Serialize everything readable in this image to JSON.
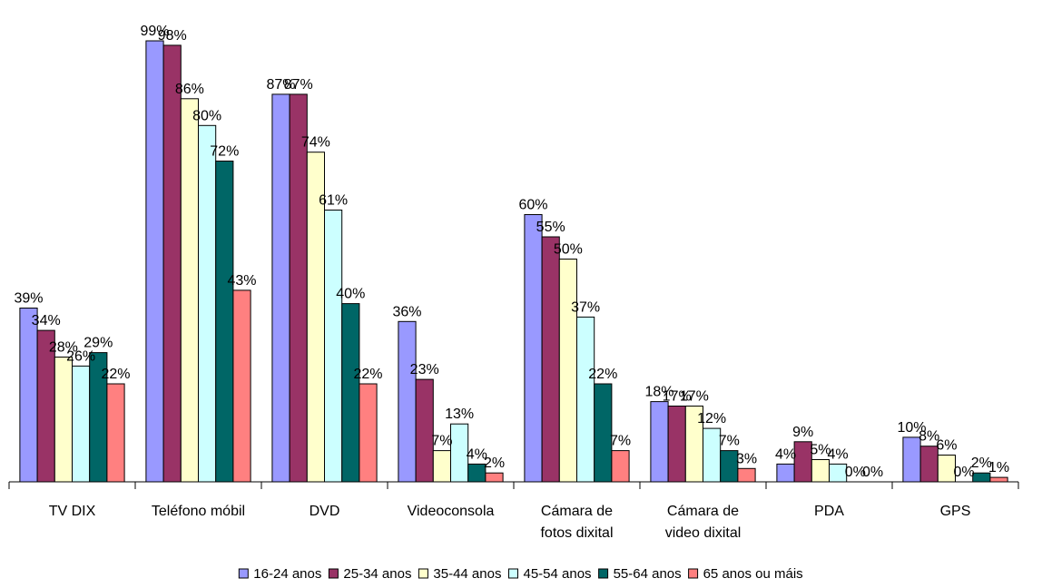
{
  "chart_data": {
    "type": "bar",
    "title": "",
    "xlabel": "",
    "ylabel": "",
    "ylim": [
      0,
      100
    ],
    "grid": false,
    "legend_position": "bottom",
    "categories": [
      [
        "TV DIX"
      ],
      [
        "Teléfono móbil"
      ],
      [
        "DVD"
      ],
      [
        "Videoconsola"
      ],
      [
        "Cámara de",
        "fotos dixital"
      ],
      [
        "Cámara de",
        "video dixital"
      ],
      [
        "PDA"
      ],
      [
        "GPS"
      ]
    ],
    "series": [
      {
        "name": "16-24 anos",
        "color": "#9999FF",
        "values": [
          39,
          99,
          87,
          36,
          60,
          18,
          4,
          10
        ],
        "labels": [
          "39%",
          "99%",
          "87%",
          "36%",
          "60%",
          "18%",
          "4%",
          "10%"
        ]
      },
      {
        "name": "25-34 anos",
        "color": "#993366",
        "values": [
          34,
          98,
          87,
          23,
          55,
          17,
          9,
          8
        ],
        "labels": [
          "34%",
          "98%",
          "87%",
          "23%",
          "55%",
          "17%",
          "9%",
          "8%"
        ]
      },
      {
        "name": "35-44 anos",
        "color": "#FFFFCC",
        "values": [
          28,
          86,
          74,
          7,
          50,
          17,
          5,
          6
        ],
        "labels": [
          "28%",
          "86%",
          "74%",
          "7%",
          "50%",
          "17%",
          "5%",
          "6%"
        ]
      },
      {
        "name": "45-54 anos",
        "color": "#CCFFFF",
        "values": [
          26,
          80,
          61,
          13,
          37,
          12,
          4,
          0
        ],
        "labels": [
          "26%",
          "80%",
          "61%",
          "13%",
          "37%",
          "12%",
          "4%",
          "0%"
        ]
      },
      {
        "name": "55-64 anos",
        "color": "#006666",
        "values": [
          29,
          72,
          40,
          4,
          22,
          7,
          0,
          2
        ],
        "labels": [
          "29%",
          "72%",
          "40%",
          "4%",
          "22%",
          "7%",
          "0%",
          "2%"
        ]
      },
      {
        "name": "65 anos ou máis",
        "color": "#FF8080",
        "values": [
          22,
          43,
          22,
          2,
          7,
          3,
          0,
          1
        ],
        "labels": [
          "22%",
          "43%",
          "22%",
          "2%",
          "7%",
          "3%",
          "0%",
          "1%"
        ]
      }
    ]
  }
}
